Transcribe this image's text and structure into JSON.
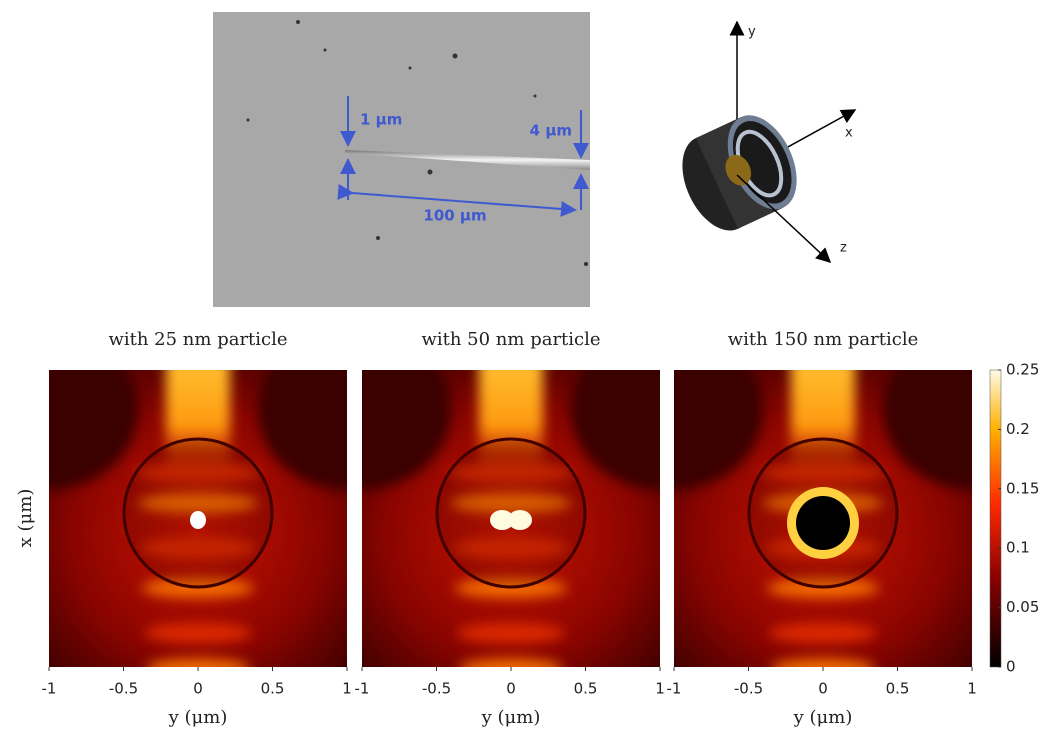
{
  "micrograph": {
    "labels": [
      "1 µm",
      "4 µm",
      "100 µm"
    ]
  },
  "diagram": {
    "axes": [
      "y",
      "x",
      "z"
    ]
  },
  "panels": [
    {
      "title": "with 25 nm particle"
    },
    {
      "title": "with 50 nm particle"
    },
    {
      "title": "with 150 nm particle"
    }
  ],
  "x_axis": {
    "label": "y (μm)",
    "ticks": [
      -1,
      -0.5,
      0,
      0.5,
      1
    ],
    "lim": [
      -1,
      1
    ]
  },
  "y_axis": {
    "label": "x (μm)"
  },
  "colorbar": {
    "ticks": [
      0,
      0.05,
      0.1,
      0.15,
      0.2,
      0.25
    ],
    "lim": [
      0,
      0.25
    ]
  }
}
